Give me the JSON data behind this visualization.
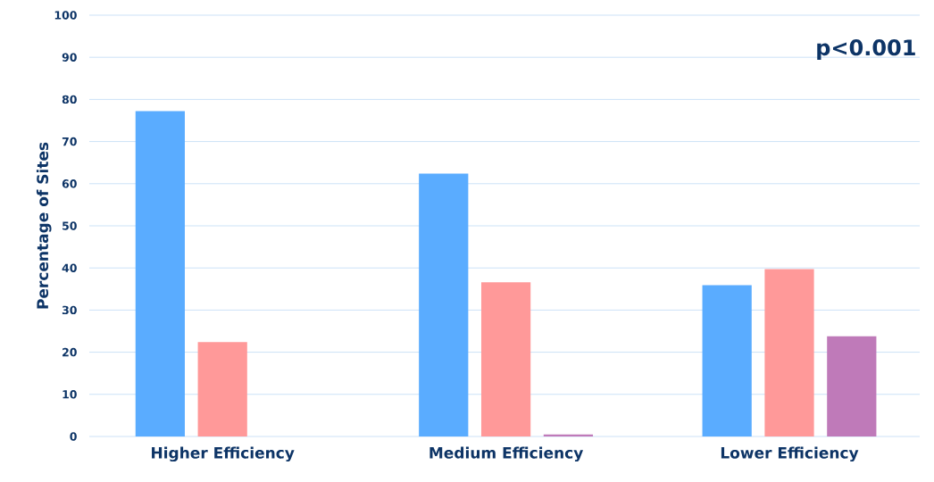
{
  "chart_data": {
    "type": "bar",
    "ylabel": "Percentage of Sites",
    "categories": [
      "Higher Efficiency",
      "Medium Efficiency",
      "Lower Efficiency"
    ],
    "series": [
      {
        "color": "#5aacff",
        "values": [
          77.2,
          62.4,
          35.9
        ]
      },
      {
        "color": "#ff9999",
        "values": [
          22.4,
          36.6,
          39.7
        ]
      },
      {
        "color": "#bf7ab9",
        "values": [
          0,
          0.5,
          23.8
        ]
      }
    ],
    "ylim": [
      0,
      100
    ],
    "yticks": [
      0,
      10,
      20,
      30,
      40,
      50,
      60,
      70,
      80,
      90,
      100
    ],
    "grid": "y",
    "annotations": [
      "p<0.001"
    ]
  }
}
